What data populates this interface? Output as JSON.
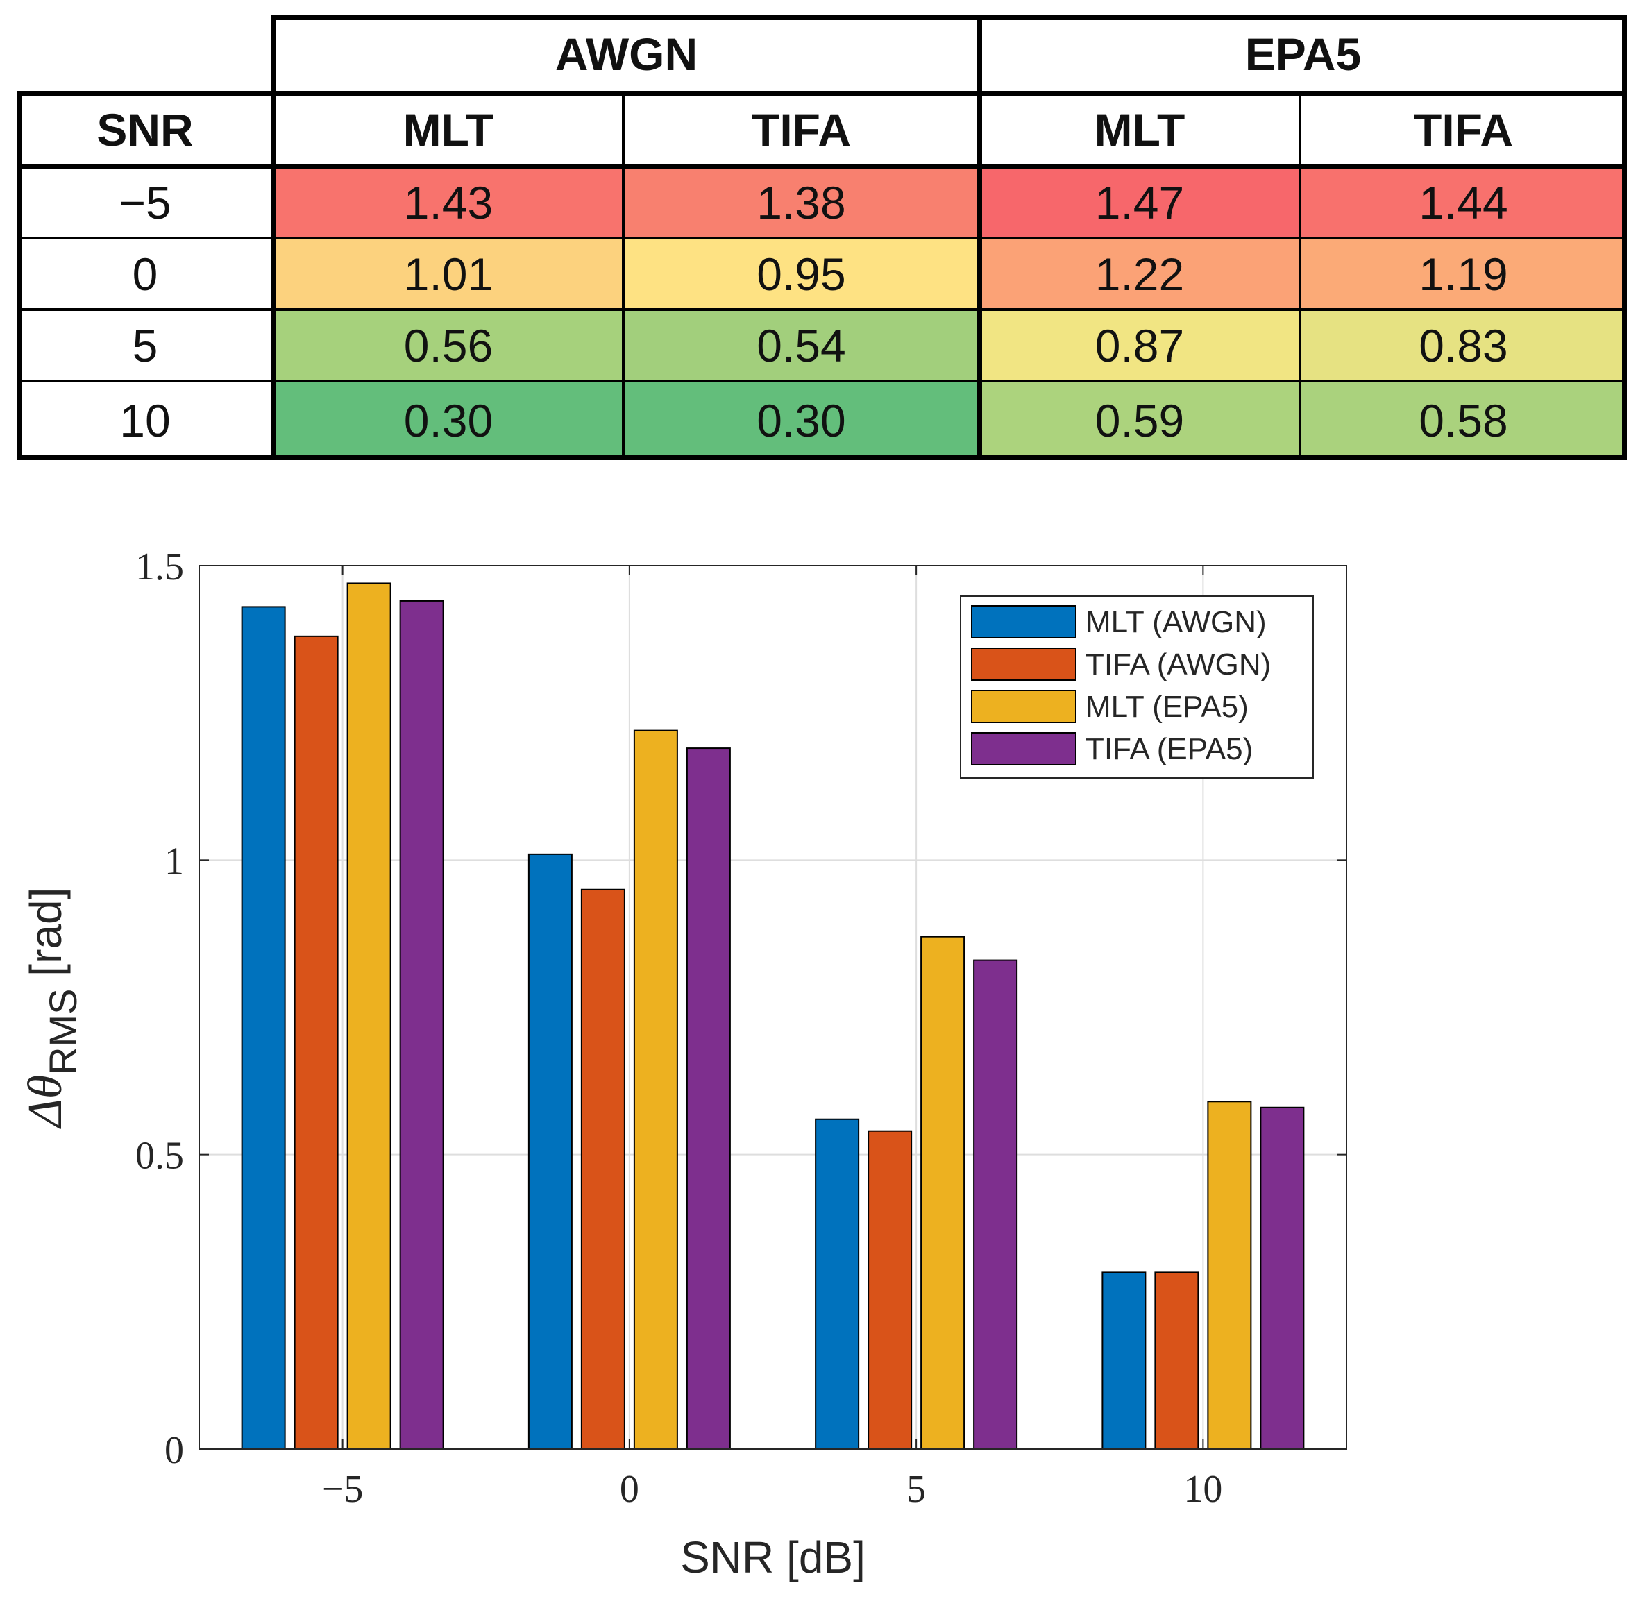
{
  "table": {
    "group_headers": [
      "AWGN",
      "EPA5"
    ],
    "columns": [
      "SNR",
      "MLT",
      "TIFA",
      "MLT",
      "TIFA"
    ],
    "rows": [
      {
        "snr": "−5",
        "values": [
          "1.43",
          "1.38",
          "1.47",
          "1.44"
        ],
        "colors": [
          "#f8736d",
          "#f8806f",
          "#f7676b",
          "#f8716d"
        ]
      },
      {
        "snr": "0",
        "values": [
          "1.01",
          "0.95",
          "1.22",
          "1.19"
        ],
        "colors": [
          "#fcd27e",
          "#fee283",
          "#fba276",
          "#fbaa77"
        ]
      },
      {
        "snr": "5",
        "values": [
          "0.56",
          "0.54",
          "0.87",
          "0.83"
        ],
        "colors": [
          "#a6d17c",
          "#a2cf7c",
          "#f1e583",
          "#e6e282"
        ]
      },
      {
        "snr": "10",
        "values": [
          "0.30",
          "0.30",
          "0.59",
          "0.58"
        ],
        "colors": [
          "#63be7b",
          "#63be7b",
          "#acd37d",
          "#aad27d"
        ]
      }
    ]
  },
  "chart_data": {
    "type": "bar",
    "categories": [
      "−5",
      "0",
      "5",
      "10"
    ],
    "series": [
      {
        "name": "MLT (AWGN)",
        "values": [
          1.43,
          1.01,
          0.56,
          0.3
        ],
        "color": "#0072bd"
      },
      {
        "name": "TIFA (AWGN)",
        "values": [
          1.38,
          0.95,
          0.54,
          0.3
        ],
        "color": "#d95319"
      },
      {
        "name": "MLT (EPA5)",
        "values": [
          1.47,
          1.22,
          0.87,
          0.59
        ],
        "color": "#edb120"
      },
      {
        "name": "TIFA (EPA5)",
        "values": [
          1.44,
          1.19,
          0.83,
          0.58
        ],
        "color": "#7e2f8e"
      }
    ],
    "title": "",
    "xlabel": "SNR [dB]",
    "ylabel_main": "Δθ",
    "ylabel_sub": "RMS",
    "ylabel_unit": "[rad]",
    "ylim": [
      0,
      1.5
    ],
    "yticks": [
      "0",
      "0.5",
      "1",
      "1.5"
    ],
    "grid": true,
    "legend_position": "top-right"
  }
}
